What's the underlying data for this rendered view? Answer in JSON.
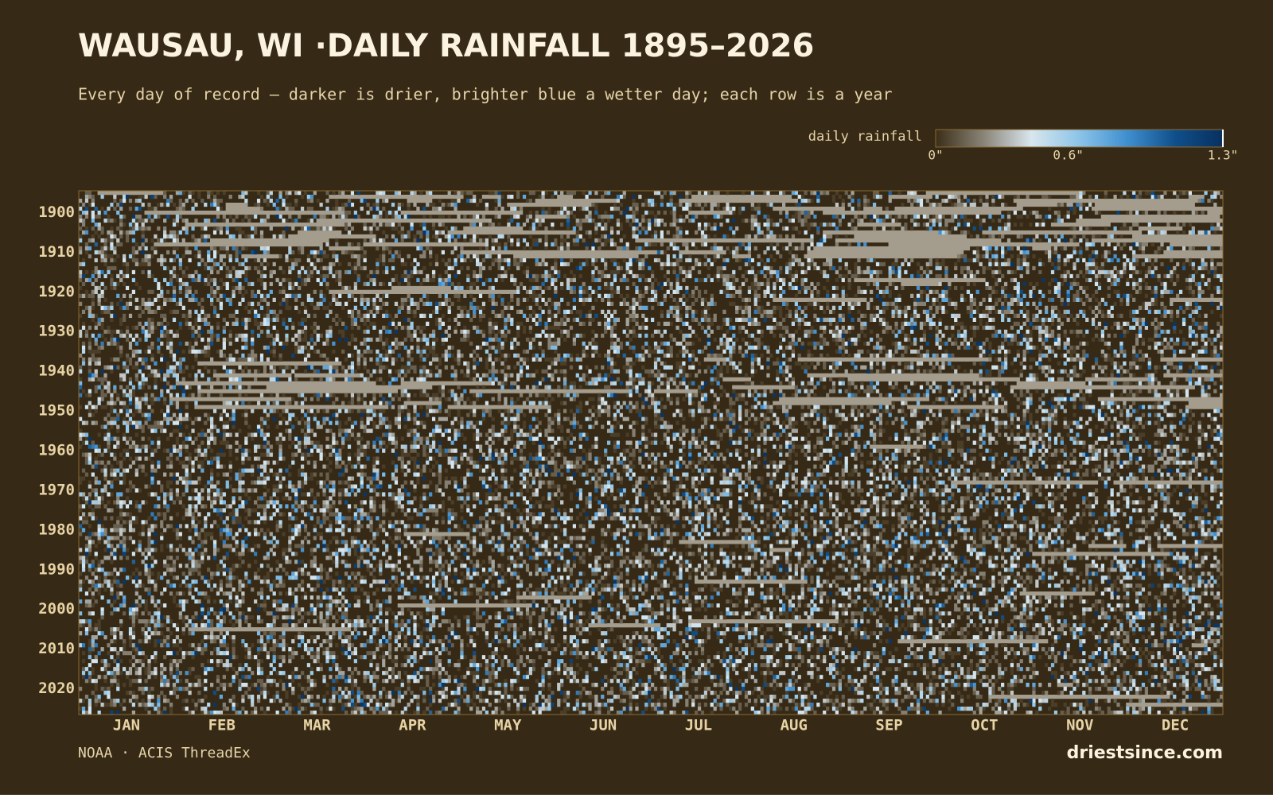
{
  "chart_data": {
    "type": "heatmap",
    "title": "WAUSAU, WI ·DAILY RAINFALL 1895–2026",
    "subtitle": "Every day of record — darker is drier, brighter blue a wetter day; each row is a year",
    "categories": [
      "JAN",
      "FEB",
      "MAR",
      "APR",
      "MAY",
      "JUN",
      "JUL",
      "AUG",
      "SEP",
      "OCT",
      "NOV",
      "DEC"
    ],
    "ylim": [
      1895,
      2026
    ],
    "yticks": [
      1900,
      1910,
      1920,
      1930,
      1940,
      1950,
      1960,
      1970,
      1980,
      1990,
      2000,
      2010,
      2020
    ],
    "colorbar": {
      "label": "daily rainfall",
      "lim": [
        0,
        1.3
      ],
      "ticks": [
        {
          "value": 0,
          "label": "0\""
        },
        {
          "value": 0.6,
          "label": "0.6\""
        },
        {
          "value": 1.3,
          "label": "1.3\""
        }
      ],
      "colors": [
        "#3b2e17",
        "#8a8478",
        "#d8e6ee",
        "#8cc4e8",
        "#3f8fcf",
        "#0f4f8a",
        "#08305e"
      ]
    },
    "background": "#362a16",
    "source": "NOAA · ACIS ThreadEx",
    "brand": "driestsince.com"
  }
}
